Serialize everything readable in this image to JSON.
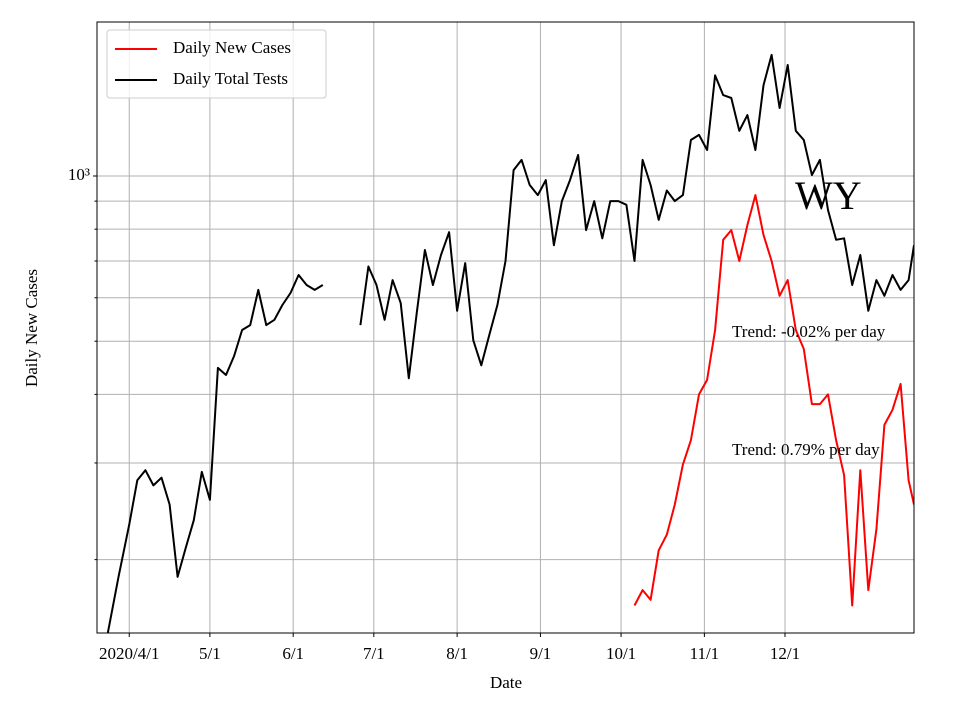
{
  "chart_data": {
    "type": "line",
    "xlabel": "Date",
    "ylabel": "Daily New Cases",
    "yscale": "log",
    "grid": true,
    "legend": "upper left",
    "xlim": [
      "2020-03-20",
      "2021-01-18"
    ],
    "ylim": [
      147,
      1908
    ],
    "yticks": [
      {
        "value": 1000,
        "label": "10³"
      }
    ],
    "yminorticks": [
      200,
      300,
      400,
      500,
      600,
      700,
      800,
      900
    ],
    "xticks": [
      {
        "value": "2020-04-01",
        "label": "2020/4/1"
      },
      {
        "value": "2020-05-01",
        "label": "5/1"
      },
      {
        "value": "2020-06-01",
        "label": "6/1"
      },
      {
        "value": "2020-07-01",
        "label": "7/1"
      },
      {
        "value": "2020-08-01",
        "label": "8/1"
      },
      {
        "value": "2020-09-01",
        "label": "9/1"
      },
      {
        "value": "2020-10-01",
        "label": "10/1"
      },
      {
        "value": "2020-11-01",
        "label": "11/1"
      },
      {
        "value": "2020-12-01",
        "label": "12/1"
      }
    ],
    "annotations": [
      "WY",
      "Trend: -0.02% per day",
      "Trend: 0.79% per day"
    ],
    "x": [
      "2020-03-24",
      "2020-03-28",
      "2020-04-01",
      "2020-04-04",
      "2020-04-07",
      "2020-04-10",
      "2020-04-13",
      "2020-04-16",
      "2020-04-19",
      "2020-04-22",
      "2020-04-25",
      "2020-04-28",
      "2020-05-01",
      "2020-05-04",
      "2020-05-07",
      "2020-05-10",
      "2020-05-13",
      "2020-05-16",
      "2020-05-19",
      "2020-05-22",
      "2020-05-25",
      "2020-05-28",
      "2020-05-31",
      "2020-06-03",
      "2020-06-06",
      "2020-06-09",
      "2020-06-12",
      "2020-06-19",
      "2020-06-26",
      "2020-06-29",
      "2020-07-02",
      "2020-07-05",
      "2020-07-08",
      "2020-07-11",
      "2020-07-14",
      "2020-07-17",
      "2020-07-20",
      "2020-07-23",
      "2020-07-26",
      "2020-07-29",
      "2020-08-01",
      "2020-08-04",
      "2020-08-07",
      "2020-08-10",
      "2020-08-13",
      "2020-08-16",
      "2020-08-19",
      "2020-08-22",
      "2020-08-25",
      "2020-08-28",
      "2020-08-31",
      "2020-09-03",
      "2020-09-06",
      "2020-09-09",
      "2020-09-12",
      "2020-09-15",
      "2020-09-18",
      "2020-09-21",
      "2020-09-24",
      "2020-09-27",
      "2020-09-30",
      "2020-10-03",
      "2020-10-06",
      "2020-10-09",
      "2020-10-12",
      "2020-10-15",
      "2020-10-18",
      "2020-10-21",
      "2020-10-24",
      "2020-10-27",
      "2020-10-30",
      "2020-11-02",
      "2020-11-05",
      "2020-11-08",
      "2020-11-11",
      "2020-11-14",
      "2020-11-17",
      "2020-11-20",
      "2020-11-23",
      "2020-11-26",
      "2020-11-29",
      "2020-12-02",
      "2020-12-05",
      "2020-12-08",
      "2020-12-11",
      "2020-12-14",
      "2020-12-17",
      "2020-12-20",
      "2020-12-23",
      "2020-12-26",
      "2020-12-29",
      "2021-01-01",
      "2021-01-04",
      "2021-01-07",
      "2021-01-10",
      "2021-01-13",
      "2021-01-16",
      "2021-01-18"
    ],
    "series": [
      {
        "name": "Daily New Cases",
        "color": "#ff0000",
        "values": [
          null,
          null,
          null,
          null,
          null,
          null,
          null,
          null,
          null,
          null,
          null,
          null,
          null,
          null,
          null,
          null,
          null,
          null,
          null,
          null,
          null,
          null,
          null,
          null,
          null,
          null,
          null,
          null,
          null,
          null,
          null,
          null,
          null,
          null,
          null,
          null,
          null,
          null,
          null,
          null,
          null,
          null,
          null,
          null,
          null,
          null,
          null,
          null,
          null,
          null,
          null,
          null,
          null,
          null,
          null,
          null,
          null,
          null,
          null,
          null,
          null,
          null,
          165,
          176,
          169,
          208,
          222,
          252,
          298,
          330,
          400,
          425,
          524,
          765,
          797,
          700,
          814,
          923,
          781,
          700,
          605,
          646,
          524,
          484,
          384,
          384,
          400,
          330,
          285,
          165,
          291,
          176,
          227,
          352,
          375,
          418,
          279,
          252
        ]
      },
      {
        "name": "Daily Total Tests",
        "color": "#000000",
        "values": [
          147,
          186,
          232,
          279,
          291,
          273,
          282,
          252,
          186,
          210,
          236,
          289,
          257,
          447,
          434,
          470,
          524,
          535,
          620,
          535,
          547,
          582,
          612,
          660,
          633,
          620,
          633,
          null,
          535,
          684,
          633,
          547,
          646,
          587,
          428,
          564,
          733,
          633,
          718,
          790,
          568,
          694,
          502,
          452,
          514,
          582,
          700,
          1025,
          1070,
          963,
          923,
          983,
          748,
          900,
          983,
          1092,
          797,
          900,
          770,
          900,
          900,
          886,
          700,
          1070,
          963,
          832,
          941,
          900,
          923,
          1163,
          1188,
          1115,
          1525,
          1404,
          1387,
          1209,
          1291,
          1115,
          1463,
          1662,
          1330,
          1593,
          1209,
          1163,
          1004,
          1070,
          867,
          765,
          770,
          633,
          718,
          568,
          646,
          605,
          660,
          620,
          646,
          748
        ]
      }
    ]
  }
}
